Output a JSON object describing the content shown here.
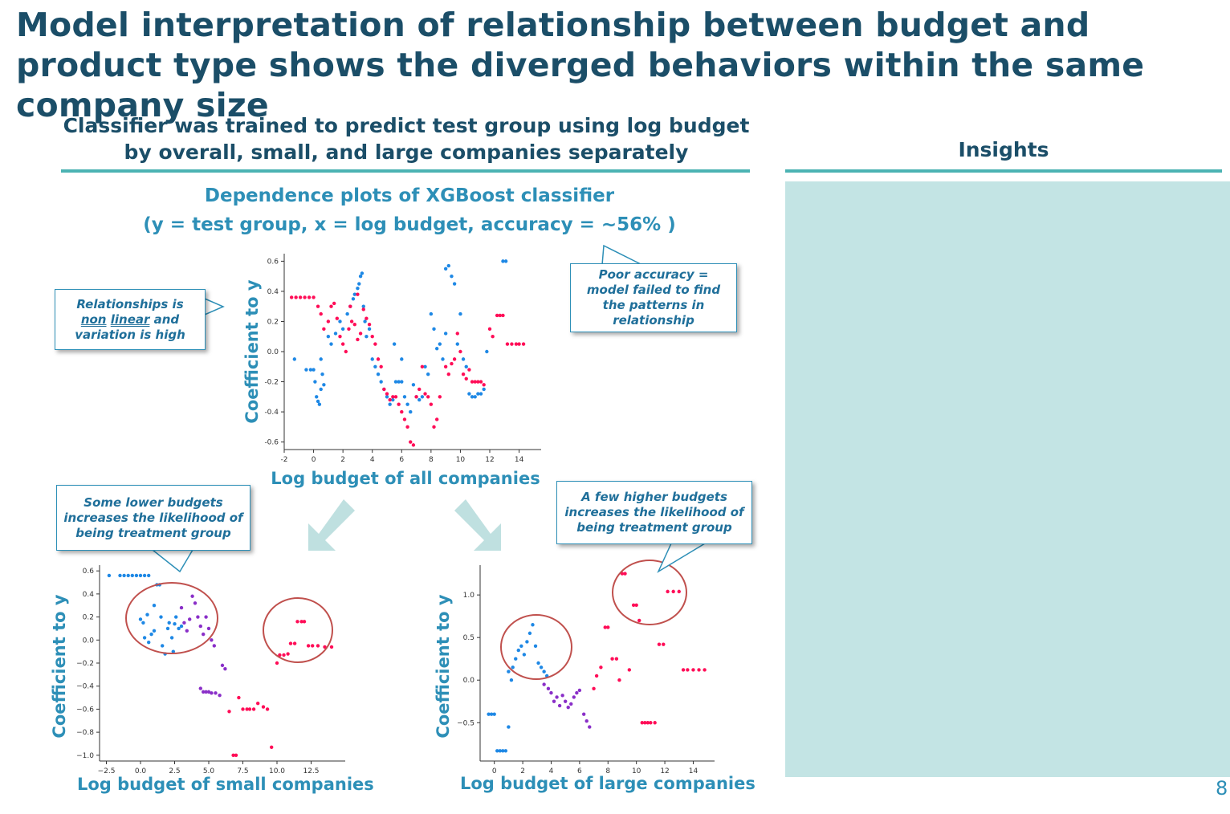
{
  "slide": {
    "title": "Model interpretation of relationship between budget and product type shows the diverged behaviors within the same company size",
    "subtitle_line1": "Classifier was trained to predict test group using log budget",
    "subtitle_line2": "by overall, small, and large companies separately",
    "insights_heading": "Insights",
    "dependence_title_line1": "Dependence plots of XGBoost classifier",
    "dependence_title_line2": "(y = test group, x = log budget, accuracy = ~56% )",
    "page_number": "8",
    "colors": {
      "title": "#1b4e68",
      "accent": "#2d8fb7",
      "rule": "#4bb3b3",
      "panel": "#c3e4e4",
      "low": "#1e88e5",
      "high": "#ff0d57",
      "circle": "#c0504d"
    }
  },
  "callouts": {
    "nonlinear_pre": "Relationships is ",
    "nonlinear_u1": "non",
    "nonlinear_u2": "linear",
    "nonlinear_post": " and variation is high",
    "poor_accuracy": "Poor accuracy = model failed to find the patterns in relationship",
    "lower_budgets": "Some lower budgets increases the likelihood of being treatment group",
    "higher_budgets": "A few higher budgets increases the  likelihood of being treatment group"
  },
  "chart_data": [
    {
      "id": "all",
      "type": "scatter",
      "xlabel": "Log budget of all companies",
      "ylabel": "Coefficient to y",
      "xlim": [
        -2,
        15.5
      ],
      "ylim": [
        -0.65,
        0.65
      ],
      "xticks": [
        -2,
        0,
        2,
        4,
        6,
        8,
        10,
        12,
        14
      ],
      "yticks": [
        0.6,
        0.4,
        0.2,
        0.0,
        -0.2,
        -0.4,
        -0.6
      ],
      "ytick_labels": [
        "0.6",
        "0.4",
        "0.2",
        "0.0",
        "-0.2",
        "-0.4",
        "-0.6"
      ],
      "xtick_labels": [
        "-2",
        "0",
        "2",
        "4",
        "6",
        "8",
        "10",
        "12",
        "14"
      ],
      "points_blue": [
        [
          -1.3,
          -0.05
        ],
        [
          -0.5,
          -0.12
        ],
        [
          -0.2,
          -0.12
        ],
        [
          0,
          -0.12
        ],
        [
          0.1,
          -0.2
        ],
        [
          0.2,
          -0.3
        ],
        [
          0.3,
          -0.33
        ],
        [
          0.4,
          -0.35
        ],
        [
          0.5,
          -0.25
        ],
        [
          0.6,
          -0.15
        ],
        [
          0.7,
          -0.22
        ],
        [
          0.5,
          -0.05
        ],
        [
          1,
          0.1
        ],
        [
          1.2,
          0.05
        ],
        [
          1.5,
          0.12
        ],
        [
          1.8,
          0.2
        ],
        [
          2,
          0.15
        ],
        [
          2.3,
          0.25
        ],
        [
          2.5,
          0.3
        ],
        [
          2.7,
          0.35
        ],
        [
          2.8,
          0.38
        ],
        [
          3,
          0.42
        ],
        [
          3.1,
          0.45
        ],
        [
          3.2,
          0.5
        ],
        [
          3.3,
          0.52
        ],
        [
          3.4,
          0.3
        ],
        [
          3.5,
          0.2
        ],
        [
          3.6,
          0.1
        ],
        [
          3.8,
          0.15
        ],
        [
          4,
          -0.05
        ],
        [
          4.2,
          -0.1
        ],
        [
          4.4,
          -0.15
        ],
        [
          4.6,
          -0.2
        ],
        [
          4.8,
          -0.25
        ],
        [
          5,
          -0.3
        ],
        [
          5.2,
          -0.35
        ],
        [
          5.4,
          -0.32
        ],
        [
          5.6,
          -0.2
        ],
        [
          5.8,
          -0.2
        ],
        [
          6,
          -0.2
        ],
        [
          6.2,
          -0.3
        ],
        [
          6.4,
          -0.35
        ],
        [
          6.6,
          -0.4
        ],
        [
          6.8,
          -0.22
        ],
        [
          7,
          -0.3
        ],
        [
          7.2,
          -0.32
        ],
        [
          7.4,
          -0.3
        ],
        [
          7.6,
          -0.1
        ],
        [
          7.8,
          -0.15
        ],
        [
          8,
          0.25
        ],
        [
          8.2,
          0.15
        ],
        [
          8.4,
          0.02
        ],
        [
          8.6,
          0.05
        ],
        [
          8.8,
          -0.05
        ],
        [
          9,
          0.55
        ],
        [
          9.2,
          0.57
        ],
        [
          9.4,
          0.5
        ],
        [
          9.6,
          0.45
        ],
        [
          9.8,
          0.05
        ],
        [
          10,
          0.25
        ],
        [
          10.2,
          -0.05
        ],
        [
          10.4,
          -0.1
        ],
        [
          10.6,
          -0.28
        ],
        [
          10.8,
          -0.3
        ],
        [
          11,
          -0.3
        ],
        [
          11.2,
          -0.28
        ],
        [
          11.4,
          -0.28
        ],
        [
          11.6,
          -0.25
        ],
        [
          11.8,
          0.0
        ],
        [
          12.5,
          0.7
        ],
        [
          12.7,
          0.7
        ],
        [
          12.9,
          0.6
        ],
        [
          13.1,
          0.6
        ],
        [
          13.3,
          0.7
        ],
        [
          6,
          -0.05
        ],
        [
          5.5,
          0.05
        ],
        [
          9,
          0.12
        ]
      ],
      "points_red": [
        [
          -1.5,
          0.36
        ],
        [
          -1.2,
          0.36
        ],
        [
          -0.9,
          0.36
        ],
        [
          -0.6,
          0.36
        ],
        [
          -0.3,
          0.36
        ],
        [
          0,
          0.36
        ],
        [
          0.3,
          0.3
        ],
        [
          0.5,
          0.25
        ],
        [
          0.7,
          0.15
        ],
        [
          1,
          0.2
        ],
        [
          1.2,
          0.3
        ],
        [
          1.4,
          0.32
        ],
        [
          1.6,
          0.22
        ],
        [
          1.8,
          0.1
        ],
        [
          2,
          0.05
        ],
        [
          2.2,
          0.0
        ],
        [
          2.4,
          0.15
        ],
        [
          2.6,
          0.2
        ],
        [
          2.8,
          0.18
        ],
        [
          3,
          0.08
        ],
        [
          3.2,
          0.12
        ],
        [
          3.4,
          0.28
        ],
        [
          3.6,
          0.22
        ],
        [
          3.8,
          0.18
        ],
        [
          4,
          0.1
        ],
        [
          4.2,
          0.05
        ],
        [
          4.4,
          -0.05
        ],
        [
          4.6,
          -0.1
        ],
        [
          4.8,
          -0.25
        ],
        [
          5,
          -0.28
        ],
        [
          5.2,
          -0.32
        ],
        [
          5.4,
          -0.3
        ],
        [
          5.6,
          -0.3
        ],
        [
          5.8,
          -0.35
        ],
        [
          6,
          -0.4
        ],
        [
          6.2,
          -0.45
        ],
        [
          6.4,
          -0.5
        ],
        [
          6.6,
          -0.6
        ],
        [
          6.8,
          -0.62
        ],
        [
          7,
          -0.3
        ],
        [
          7.2,
          -0.25
        ],
        [
          7.4,
          -0.1
        ],
        [
          7.6,
          -0.28
        ],
        [
          7.8,
          -0.3
        ],
        [
          8,
          -0.35
        ],
        [
          8.2,
          -0.5
        ],
        [
          8.4,
          -0.45
        ],
        [
          8.6,
          -0.3
        ],
        [
          9,
          -0.1
        ],
        [
          9.2,
          -0.15
        ],
        [
          9.4,
          -0.08
        ],
        [
          9.6,
          -0.05
        ],
        [
          9.8,
          0.12
        ],
        [
          10,
          0.0
        ],
        [
          10.2,
          -0.15
        ],
        [
          10.4,
          -0.18
        ],
        [
          10.6,
          -0.12
        ],
        [
          10.8,
          -0.2
        ],
        [
          11,
          -0.2
        ],
        [
          11.2,
          -0.2
        ],
        [
          11.4,
          -0.2
        ],
        [
          11.6,
          -0.22
        ],
        [
          12,
          0.15
        ],
        [
          12.2,
          0.1
        ],
        [
          12.5,
          0.24
        ],
        [
          12.7,
          0.24
        ],
        [
          12.9,
          0.24
        ],
        [
          13.2,
          0.05
        ],
        [
          13.5,
          0.05
        ],
        [
          13.8,
          0.05
        ],
        [
          14,
          0.05
        ],
        [
          14.3,
          0.05
        ],
        [
          3,
          0.38
        ],
        [
          2.5,
          0.3
        ]
      ]
    },
    {
      "id": "small",
      "type": "scatter",
      "xlabel": "Log budget of small companies",
      "ylabel": "Coefficient to y",
      "xlim": [
        -3,
        15
      ],
      "ylim": [
        -1.05,
        0.65
      ],
      "xticks": [
        -2.5,
        0,
        2.5,
        5,
        7.5,
        10,
        12.5
      ],
      "xtick_labels": [
        "−2.5",
        "0.0",
        "2.5",
        "5.0",
        "7.5",
        "10.0",
        "12.5"
      ],
      "yticks": [
        0.6,
        0.4,
        0.2,
        0.0,
        -0.2,
        -0.4,
        -0.6,
        -0.8,
        -1.0
      ],
      "ytick_labels": [
        "0.6",
        "0.4",
        "0.2",
        "0.0",
        "−0.2",
        "−0.4",
        "−0.6",
        "−0.8",
        "−1.0"
      ],
      "points_blue": [
        [
          -2.3,
          0.56
        ],
        [
          -1.5,
          0.56
        ],
        [
          -1.2,
          0.56
        ],
        [
          -0.9,
          0.56
        ],
        [
          -0.6,
          0.56
        ],
        [
          -0.3,
          0.56
        ],
        [
          0,
          0.56
        ],
        [
          0.3,
          0.56
        ],
        [
          0.6,
          0.56
        ],
        [
          0,
          0.18
        ],
        [
          0.2,
          0.15
        ],
        [
          0.3,
          0.02
        ],
        [
          0.5,
          0.22
        ],
        [
          0.6,
          -0.02
        ],
        [
          0.8,
          0.05
        ],
        [
          1,
          0.3
        ],
        [
          1,
          0.08
        ],
        [
          1.2,
          0.48
        ],
        [
          1.4,
          0.48
        ],
        [
          1.5,
          0.2
        ],
        [
          1.6,
          -0.05
        ],
        [
          1.8,
          -0.12
        ],
        [
          2,
          0.1
        ],
        [
          2.1,
          0.15
        ],
        [
          2.3,
          0.02
        ],
        [
          2.4,
          -0.1
        ],
        [
          2.5,
          0.14
        ],
        [
          2.6,
          0.2
        ],
        [
          2.8,
          0.1
        ],
        [
          3,
          0.12
        ]
      ],
      "points_purple": [
        [
          3,
          0.28
        ],
        [
          3.2,
          0.15
        ],
        [
          3.4,
          0.08
        ],
        [
          3.6,
          0.18
        ],
        [
          3.8,
          0.38
        ],
        [
          4,
          0.32
        ],
        [
          4.2,
          0.2
        ],
        [
          4.4,
          0.12
        ],
        [
          4.6,
          0.05
        ],
        [
          4.8,
          0.2
        ],
        [
          5,
          0.1
        ],
        [
          5.2,
          0.0
        ],
        [
          5.4,
          -0.05
        ],
        [
          4.4,
          -0.42
        ],
        [
          4.6,
          -0.45
        ],
        [
          4.8,
          -0.45
        ],
        [
          5,
          -0.45
        ],
        [
          5.2,
          -0.46
        ],
        [
          5.5,
          -0.46
        ],
        [
          5.8,
          -0.48
        ],
        [
          6,
          -0.22
        ],
        [
          6.2,
          -0.25
        ]
      ],
      "points_red": [
        [
          6.5,
          -0.62
        ],
        [
          6.8,
          -1.0
        ],
        [
          7,
          -1.0
        ],
        [
          7.2,
          -0.5
        ],
        [
          7.5,
          -0.6
        ],
        [
          7.8,
          -0.6
        ],
        [
          8,
          -0.6
        ],
        [
          8.3,
          -0.6
        ],
        [
          8.6,
          -0.55
        ],
        [
          9,
          -0.58
        ],
        [
          9.3,
          -0.6
        ],
        [
          9.6,
          -0.93
        ],
        [
          10,
          -0.2
        ],
        [
          10.2,
          -0.13
        ],
        [
          10.5,
          -0.13
        ],
        [
          10.8,
          -0.12
        ],
        [
          11,
          -0.03
        ],
        [
          11.3,
          -0.03
        ],
        [
          11.5,
          0.16
        ],
        [
          11.8,
          0.16
        ],
        [
          12,
          0.16
        ],
        [
          12.3,
          -0.05
        ],
        [
          12.6,
          -0.05
        ],
        [
          13,
          -0.05
        ],
        [
          13.5,
          -0.06
        ],
        [
          14,
          -0.06
        ]
      ]
    },
    {
      "id": "large",
      "type": "scatter",
      "xlabel": "Log budget of large companies",
      "ylabel": "Coefficient to y",
      "xlim": [
        -1,
        15.5
      ],
      "ylim": [
        -0.95,
        1.35
      ],
      "xticks": [
        0,
        2,
        4,
        6,
        8,
        10,
        12,
        14
      ],
      "xtick_labels": [
        "0",
        "2",
        "4",
        "6",
        "8",
        "10",
        "12",
        "14"
      ],
      "yticks": [
        1.0,
        0.5,
        0.0,
        -0.5
      ],
      "ytick_labels": [
        "1.0",
        "0.5",
        "0.0",
        "−0.5"
      ],
      "points_blue": [
        [
          -0.4,
          -0.4
        ],
        [
          -0.2,
          -0.4
        ],
        [
          0,
          -0.4
        ],
        [
          0.2,
          -0.83
        ],
        [
          0.4,
          -0.83
        ],
        [
          0.6,
          -0.83
        ],
        [
          0.8,
          -0.83
        ],
        [
          1,
          -0.55
        ],
        [
          1,
          0.1
        ],
        [
          1.2,
          0.0
        ],
        [
          1.3,
          0.15
        ],
        [
          1.5,
          0.25
        ],
        [
          1.7,
          0.35
        ],
        [
          1.9,
          0.4
        ],
        [
          2.1,
          0.3
        ],
        [
          2.3,
          0.45
        ],
        [
          2.5,
          0.55
        ],
        [
          2.7,
          0.65
        ],
        [
          2.9,
          0.4
        ],
        [
          3.1,
          0.2
        ],
        [
          3.3,
          0.15
        ],
        [
          3.5,
          0.1
        ],
        [
          3.7,
          0.05
        ]
      ],
      "points_purple": [
        [
          3.5,
          -0.05
        ],
        [
          3.8,
          -0.1
        ],
        [
          4,
          -0.15
        ],
        [
          4.2,
          -0.25
        ],
        [
          4.4,
          -0.2
        ],
        [
          4.6,
          -0.3
        ],
        [
          4.8,
          -0.18
        ],
        [
          5,
          -0.25
        ],
        [
          5.2,
          -0.32
        ],
        [
          5.4,
          -0.28
        ],
        [
          5.6,
          -0.2
        ],
        [
          5.8,
          -0.15
        ],
        [
          6,
          -0.12
        ],
        [
          6.3,
          -0.4
        ],
        [
          6.5,
          -0.48
        ],
        [
          6.7,
          -0.55
        ]
      ],
      "points_red": [
        [
          7,
          -0.1
        ],
        [
          7.2,
          0.05
        ],
        [
          7.5,
          0.15
        ],
        [
          7.8,
          0.62
        ],
        [
          8,
          0.62
        ],
        [
          8.3,
          0.25
        ],
        [
          8.6,
          0.25
        ],
        [
          8.8,
          0.0
        ],
        [
          9,
          1.25
        ],
        [
          9.2,
          1.25
        ],
        [
          9.5,
          0.12
        ],
        [
          9.8,
          0.88
        ],
        [
          10,
          0.88
        ],
        [
          10.2,
          0.7
        ],
        [
          10.4,
          -0.5
        ],
        [
          10.6,
          -0.5
        ],
        [
          10.8,
          -0.5
        ],
        [
          11,
          -0.5
        ],
        [
          11.3,
          -0.5
        ],
        [
          11.6,
          0.42
        ],
        [
          11.9,
          0.42
        ],
        [
          12.2,
          1.04
        ],
        [
          12.6,
          1.04
        ],
        [
          13,
          1.04
        ],
        [
          13.3,
          0.12
        ],
        [
          13.6,
          0.12
        ],
        [
          14,
          0.12
        ],
        [
          14.4,
          0.12
        ],
        [
          14.8,
          0.12
        ]
      ]
    }
  ]
}
